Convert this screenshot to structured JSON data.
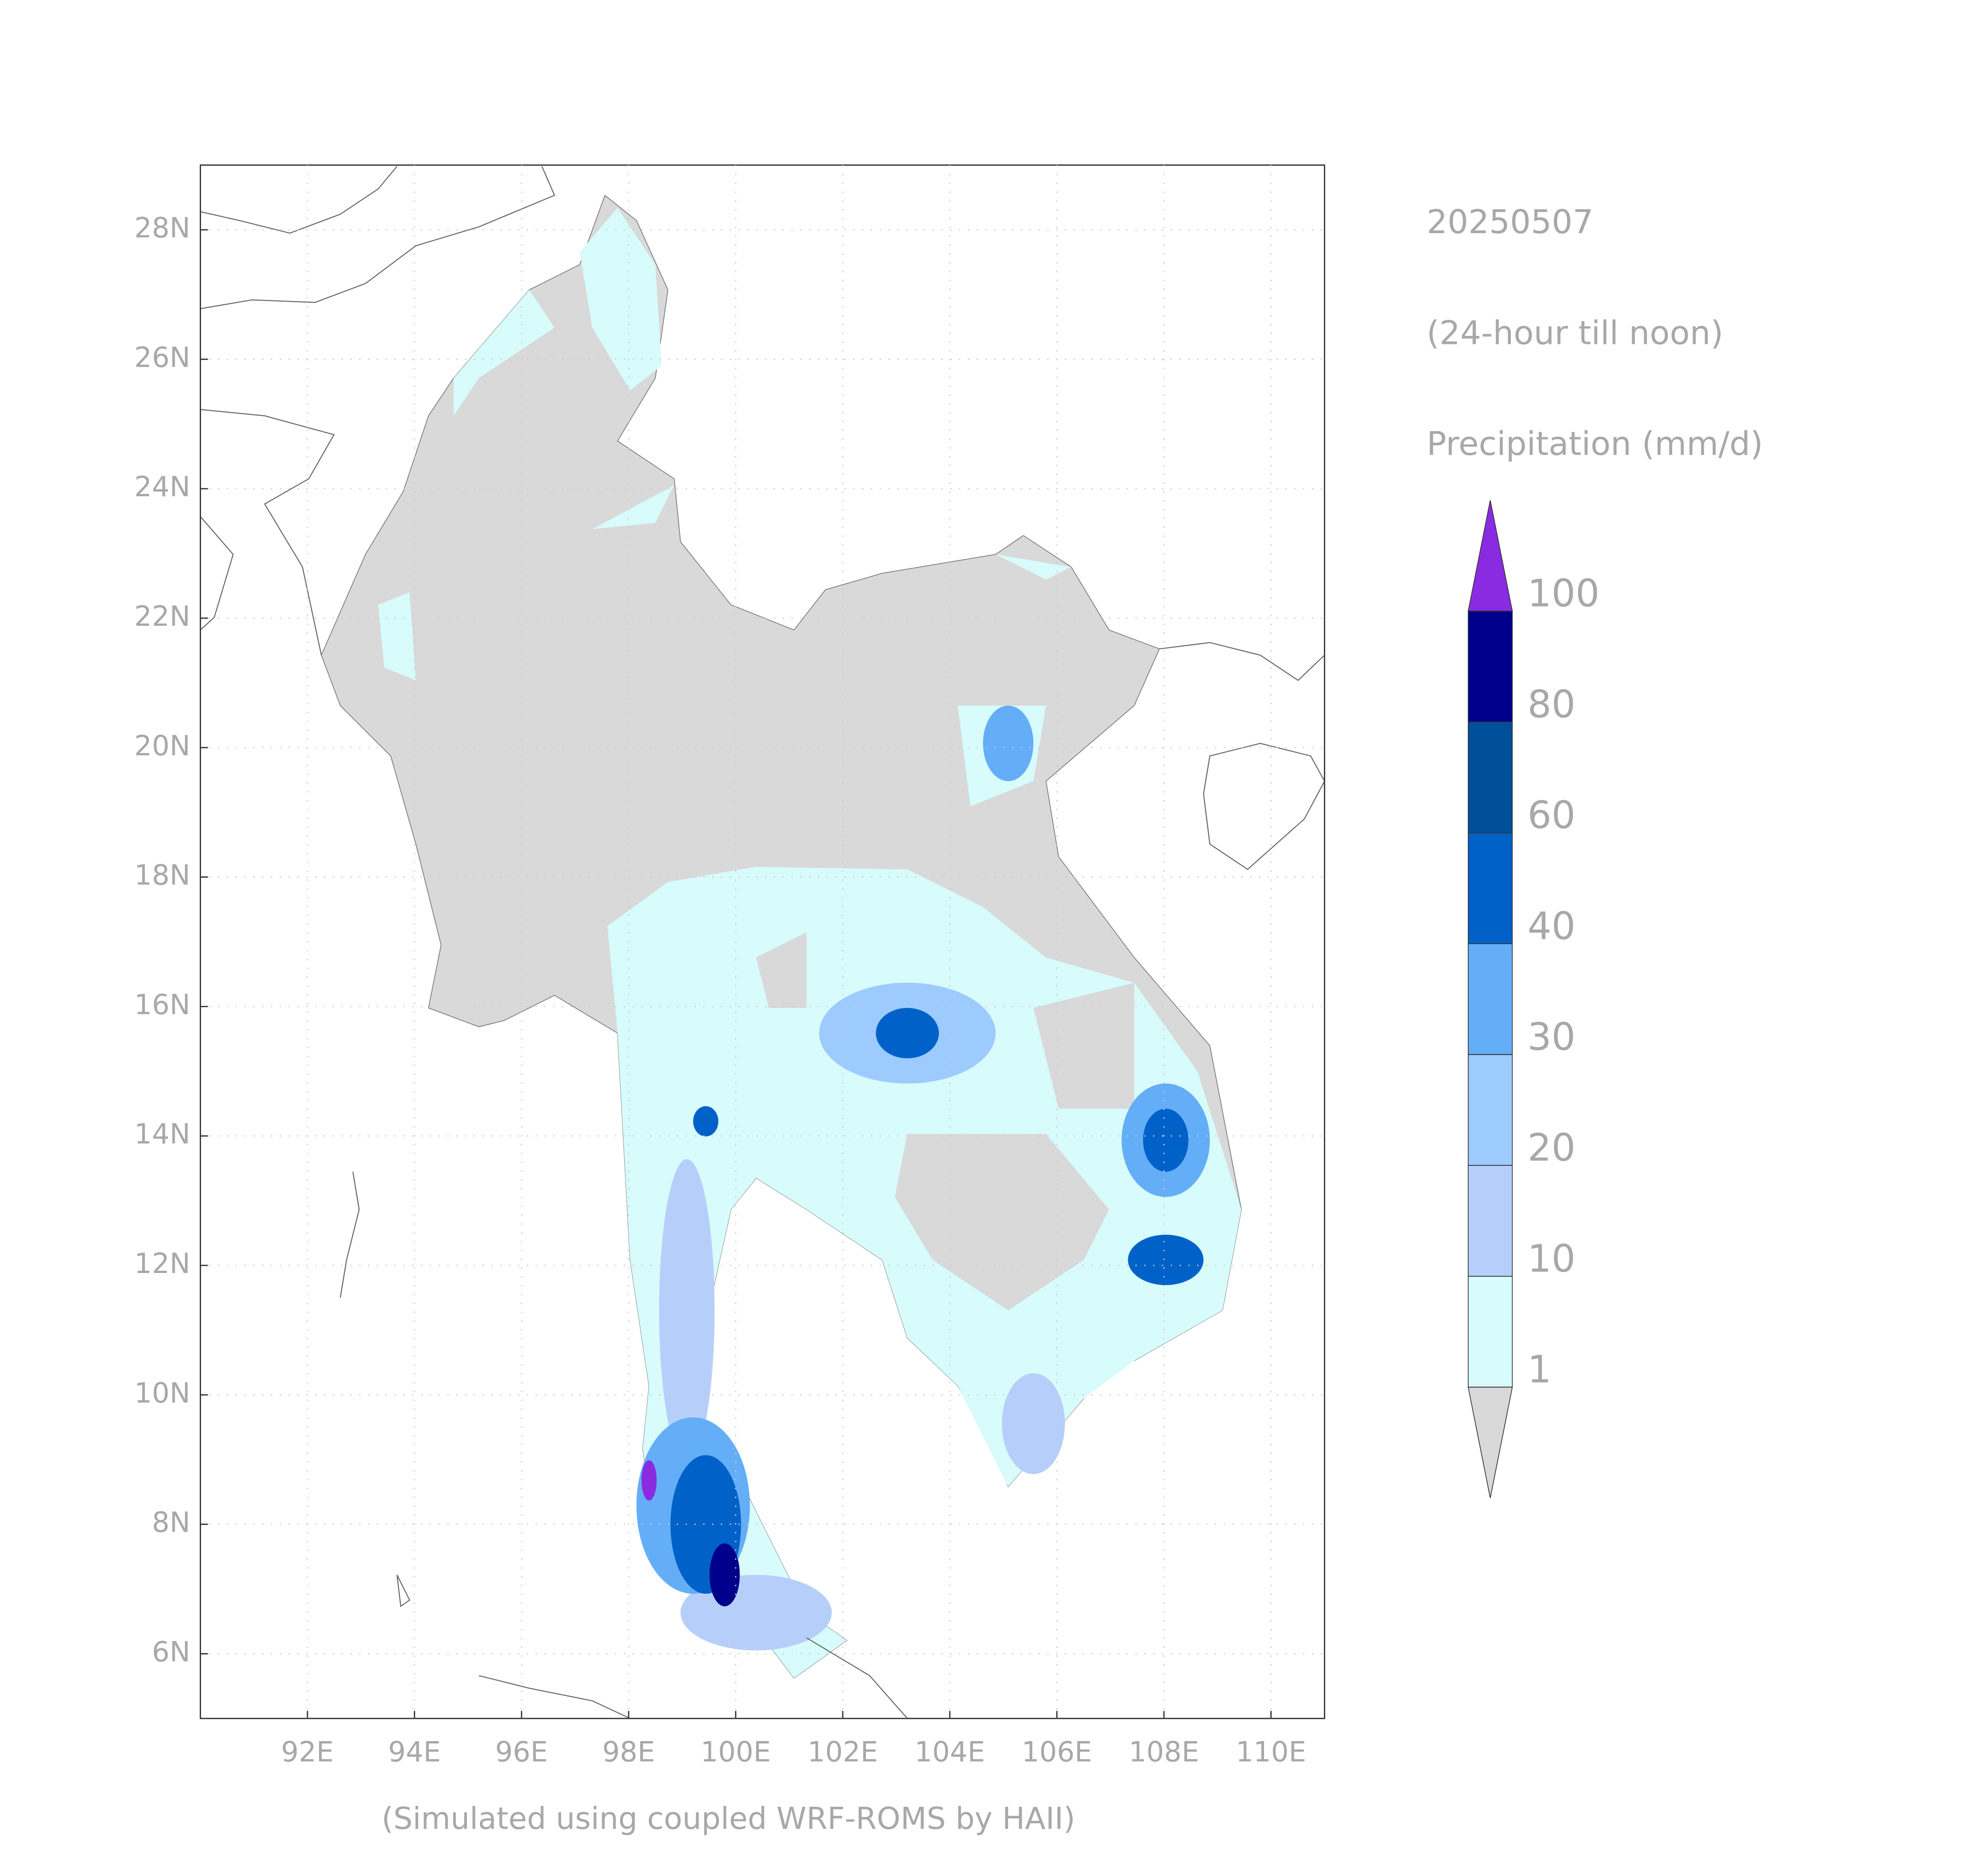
{
  "header": {
    "date": "20250507",
    "period": "(24-hour till noon)",
    "variable": "Precipitation (mm/d)"
  },
  "footer": {
    "credit": "(Simulated using coupled WRF-ROMS by HAII)"
  },
  "map": {
    "xlim": [
      90,
      111
    ],
    "ylim": [
      5,
      29
    ],
    "lon_ticks": [
      {
        "value": 92,
        "label": "92E"
      },
      {
        "value": 94,
        "label": "94E"
      },
      {
        "value": 96,
        "label": "96E"
      },
      {
        "value": 98,
        "label": "98E"
      },
      {
        "value": 100,
        "label": "100E"
      },
      {
        "value": 102,
        "label": "102E"
      },
      {
        "value": 104,
        "label": "104E"
      },
      {
        "value": 106,
        "label": "106E"
      },
      {
        "value": 108,
        "label": "108E"
      },
      {
        "value": 110,
        "label": "110E"
      }
    ],
    "lat_ticks": [
      {
        "value": 6,
        "label": "6N"
      },
      {
        "value": 8,
        "label": "8N"
      },
      {
        "value": 10,
        "label": "10N"
      },
      {
        "value": 12,
        "label": "12N"
      },
      {
        "value": 14,
        "label": "14N"
      },
      {
        "value": 16,
        "label": "16N"
      },
      {
        "value": 18,
        "label": "18N"
      },
      {
        "value": 20,
        "label": "20N"
      },
      {
        "value": 22,
        "label": "22N"
      },
      {
        "value": 24,
        "label": "24N"
      },
      {
        "value": 26,
        "label": "26N"
      },
      {
        "value": 28,
        "label": "28N"
      }
    ],
    "grid": true
  },
  "colorbar": {
    "levels": [
      1,
      10,
      20,
      30,
      40,
      60,
      80,
      100
    ],
    "colors": [
      "#d9d9d9",
      "#d8fbfb",
      "#b6cffa",
      "#9dcbfe",
      "#63aef7",
      "#0062c9",
      "#004f9a",
      "#00008c",
      "#8a2be2"
    ]
  }
}
